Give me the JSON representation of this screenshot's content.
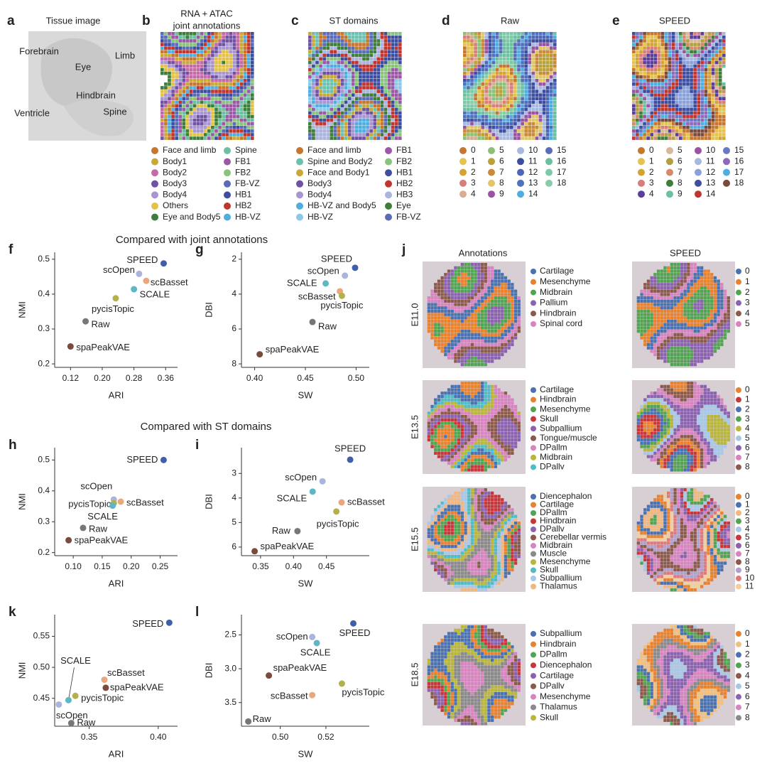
{
  "panels": [
    {
      "letter": "a",
      "title": [
        "Tissue image"
      ],
      "annotations": [
        "Forebrain",
        "Eye",
        "Limb",
        "Hindbrain",
        "Ventricle",
        "Spine"
      ]
    },
    {
      "letter": "b",
      "title": [
        "RNA + ATAC",
        "joint annotations"
      ],
      "legend": [
        {
          "label": "Face and limb",
          "color": "#c6762e"
        },
        {
          "label": "Body1",
          "color": "#c9a936"
        },
        {
          "label": "Body2",
          "color": "#c46aa6"
        },
        {
          "label": "Body3",
          "color": "#6f52a4"
        },
        {
          "label": "Body4",
          "color": "#a896d0"
        },
        {
          "label": "Others",
          "color": "#e3c24a"
        },
        {
          "label": "Eye and Body5",
          "color": "#3f7d3a"
        },
        {
          "label": "Spine",
          "color": "#6cc0a0"
        },
        {
          "label": "FB1",
          "color": "#9a58a6"
        },
        {
          "label": "FB2",
          "color": "#8ac47c"
        },
        {
          "label": "FB-VZ",
          "color": "#5a6cb8"
        },
        {
          "label": "HB1",
          "color": "#3d4ea0"
        },
        {
          "label": "HB2",
          "color": "#c0352f"
        },
        {
          "label": "HB-VZ",
          "color": "#4faee0"
        }
      ]
    },
    {
      "letter": "c",
      "title": [
        "ST domains"
      ],
      "legend": [
        {
          "label": "Face and limb",
          "color": "#c6762e"
        },
        {
          "label": "Spine and Body2",
          "color": "#6cc0b0"
        },
        {
          "label": "Face and Body1",
          "color": "#c9a936"
        },
        {
          "label": "Body3",
          "color": "#6f52a4"
        },
        {
          "label": "Body4",
          "color": "#a896d0"
        },
        {
          "label": "HB-VZ and Body5",
          "color": "#4faee0"
        },
        {
          "label": "HB-VZ",
          "color": "#8cc8e8"
        },
        {
          "label": "FB1",
          "color": "#9a58a6"
        },
        {
          "label": "FB2",
          "color": "#8ac47c"
        },
        {
          "label": "HB1",
          "color": "#3d4ea0"
        },
        {
          "label": "HB2",
          "color": "#c0352f"
        },
        {
          "label": "HB3",
          "color": "#aab4dc"
        },
        {
          "label": "Eye",
          "color": "#3f7d3a"
        },
        {
          "label": "FB-VZ",
          "color": "#5a6cb8"
        }
      ]
    },
    {
      "letter": "d",
      "title": [
        "Raw"
      ],
      "legend": [
        {
          "label": "0",
          "color": "#c6762e"
        },
        {
          "label": "1",
          "color": "#e4c34e"
        },
        {
          "label": "2",
          "color": "#d2a434"
        },
        {
          "label": "3",
          "color": "#d97c7c"
        },
        {
          "label": "4",
          "color": "#d8ac92"
        },
        {
          "label": "5",
          "color": "#8cc07a"
        },
        {
          "label": "6",
          "color": "#b9a23c"
        },
        {
          "label": "7",
          "color": "#c98a3a"
        },
        {
          "label": "8",
          "color": "#e0c668"
        },
        {
          "label": "9",
          "color": "#9a52a2"
        },
        {
          "label": "10",
          "color": "#a7b9e0"
        },
        {
          "label": "11",
          "color": "#3d4ea0"
        },
        {
          "label": "12",
          "color": "#4e65b5"
        },
        {
          "label": "13",
          "color": "#4a72c0"
        },
        {
          "label": "14",
          "color": "#4faee0"
        },
        {
          "label": "15",
          "color": "#5a6cb8"
        },
        {
          "label": "16",
          "color": "#6cc0a0"
        },
        {
          "label": "17",
          "color": "#7ec8a8"
        },
        {
          "label": "18",
          "color": "#8acba8"
        }
      ]
    },
    {
      "letter": "e",
      "title": [
        "SPEED"
      ],
      "legend": [
        {
          "label": "0",
          "color": "#c6762e"
        },
        {
          "label": "1",
          "color": "#e4c34e"
        },
        {
          "label": "2",
          "color": "#d2a434"
        },
        {
          "label": "3",
          "color": "#d97c7c"
        },
        {
          "label": "4",
          "color": "#5a3e9a"
        },
        {
          "label": "5",
          "color": "#d8b89a"
        },
        {
          "label": "6",
          "color": "#b0a040"
        },
        {
          "label": "7",
          "color": "#d48a6a"
        },
        {
          "label": "8",
          "color": "#3f7d3a"
        },
        {
          "label": "9",
          "color": "#6cc0a0"
        },
        {
          "label": "10",
          "color": "#9a52a2"
        },
        {
          "label": "11",
          "color": "#a7b9e0"
        },
        {
          "label": "12",
          "color": "#8aa0d8"
        },
        {
          "label": "13",
          "color": "#3d4ea0"
        },
        {
          "label": "14",
          "color": "#c0352f"
        },
        {
          "label": "15",
          "color": "#6a78c0"
        },
        {
          "label": "16",
          "color": "#8f6ab8"
        },
        {
          "label": "17",
          "color": "#4faee0"
        },
        {
          "label": "18",
          "color": "#7a4a3e"
        }
      ]
    }
  ],
  "section_titles": [
    "Compared with joint annotations",
    "Compared with ST domains"
  ],
  "chart_data": [
    {
      "type": "scatter",
      "panel": "f",
      "xlabel": "ARI",
      "ylabel": "NMI",
      "categories": [
        "SPEED",
        "scOpen",
        "scBasset",
        "SCALE",
        "pycisTopic",
        "Raw",
        "spaPeakVAE"
      ],
      "colors": [
        "#3f5fa8",
        "#aab4dc",
        "#e8a87c",
        "#5fb7c4",
        "#b5b04a",
        "#777777",
        "#7a4a3e"
      ],
      "x": [
        0.355,
        0.293,
        0.311,
        0.28,
        0.234,
        0.158,
        0.12
      ],
      "values": [
        0.488,
        0.458,
        0.438,
        0.414,
        0.388,
        0.322,
        0.25
      ],
      "xlim": [
        0.08,
        0.39
      ],
      "ylim": [
        0.19,
        0.52
      ],
      "xticks": [
        0.12,
        {
          "value": 0.2,
          "label": "0.20"
        },
        0.28,
        0.36
      ],
      "yticks": [
        0.2,
        0.3,
        0.4,
        0.5
      ]
    },
    {
      "type": "scatter",
      "panel": "g",
      "xlabel": "SW",
      "ylabel": "DBI",
      "categories": [
        "SPEED",
        "scOpen",
        "SCALE",
        "scBasset",
        "pycisTopic",
        "Raw",
        "spaPeakVAE"
      ],
      "colors": [
        "#3f5fa8",
        "#aab4dc",
        "#5fb7c4",
        "#e8a87c",
        "#b5b04a",
        "#777777",
        "#7a4a3e"
      ],
      "x": [
        0.499,
        0.489,
        0.47,
        0.484,
        0.486,
        0.457,
        0.405
      ],
      "values": [
        2.49,
        2.94,
        3.39,
        3.84,
        4.1,
        5.6,
        7.45
      ],
      "xlim": [
        0.387,
        0.513
      ],
      "ylim": [
        8.2,
        1.6
      ],
      "xticks": [
        {
          "value": 0.4,
          "label": "0.40"
        },
        0.45,
        {
          "value": 0.5,
          "label": "0.50"
        }
      ],
      "yticks": [
        2,
        4,
        6,
        8
      ]
    },
    {
      "type": "scatter",
      "panel": "h",
      "xlabel": "ARI",
      "ylabel": "NMI",
      "categories": [
        "SPEED",
        "scOpen",
        "scBasset",
        "pycisTopic",
        "SCALE",
        "Raw",
        "spaPeakVAE"
      ],
      "colors": [
        "#3f5fa8",
        "#aab4dc",
        "#e8a87c",
        "#b5b04a",
        "#5fb7c4",
        "#777777",
        "#7a4a3e"
      ],
      "x": [
        0.256,
        0.17,
        0.182,
        0.17,
        0.168,
        0.117,
        0.092
      ],
      "values": [
        0.5,
        0.372,
        0.365,
        0.36,
        0.352,
        0.28,
        0.24
      ],
      "xlim": [
        0.068,
        0.28
      ],
      "ylim": [
        0.19,
        0.54
      ],
      "xticks": [
        {
          "value": 0.1,
          "label": "0.10"
        },
        0.15,
        {
          "value": 0.2,
          "label": "0.20"
        },
        0.25
      ],
      "yticks": [
        0.2,
        0.3,
        0.4,
        0.5
      ]
    },
    {
      "type": "scatter",
      "panel": "i",
      "xlabel": "SW",
      "ylabel": "DBI",
      "categories": [
        "SPEED",
        "scOpen",
        "SCALE",
        "scBasset",
        "pycisTopic",
        "Raw",
        "spaPeakVAE"
      ],
      "colors": [
        "#3f5fa8",
        "#aab4dc",
        "#5fb7c4",
        "#e8a87c",
        "#b5b04a",
        "#777777",
        "#7a4a3e"
      ],
      "x": [
        0.486,
        0.444,
        0.429,
        0.473,
        0.465,
        0.406,
        0.341
      ],
      "values": [
        2.44,
        3.32,
        3.74,
        4.18,
        4.55,
        5.35,
        6.17
      ],
      "xlim": [
        0.321,
        0.515
      ],
      "ylim": [
        6.35,
        1.95
      ],
      "xticks": [
        0.35,
        {
          "value": 0.4,
          "label": "0.40"
        },
        0.45
      ],
      "yticks": [
        3,
        4,
        5,
        6
      ]
    },
    {
      "type": "scatter",
      "panel": "k",
      "xlabel": "ARI",
      "ylabel": "NMI",
      "categories": [
        "SPEED",
        "scBasset",
        "spaPeakVAE",
        "pycisTopic",
        "SCALE",
        "scOpen",
        "Raw"
      ],
      "colors": [
        "#3f5fa8",
        "#e8a87c",
        "#7a4a3e",
        "#b5b04a",
        "#5fb7c4",
        "#aab4dc",
        "#777777"
      ],
      "x": [
        0.408,
        0.361,
        0.362,
        0.34,
        0.335,
        0.328,
        0.337
      ],
      "values": [
        0.572,
        0.48,
        0.467,
        0.454,
        0.447,
        0.44,
        0.41
      ],
      "xlim": [
        0.325,
        0.414
      ],
      "ylim": [
        0.405,
        0.585
      ],
      "xticks": [
        0.35,
        {
          "value": 0.4,
          "label": "0.40"
        }
      ],
      "yticks": [
        0.45,
        {
          "value": 0.5,
          "label": "0.50"
        },
        0.55
      ]
    },
    {
      "type": "scatter",
      "panel": "l",
      "xlabel": "SW",
      "ylabel": "DBI",
      "categories": [
        "SPEED",
        "scOpen",
        "SCALE",
        "spaPeakVAE",
        "pycisTopic",
        "scBasset",
        "Raw"
      ],
      "colors": [
        "#3f5fa8",
        "#aab4dc",
        "#5fb7c4",
        "#7a4a3e",
        "#b5b04a",
        "#e8a87c",
        "#777777"
      ],
      "x": [
        0.532,
        0.514,
        0.516,
        0.495,
        0.527,
        0.514,
        0.486
      ],
      "values": [
        2.33,
        2.53,
        2.62,
        3.1,
        3.22,
        3.39,
        3.78
      ],
      "xlim": [
        0.483,
        0.539
      ],
      "ylim": [
        3.85,
        2.2
      ],
      "xticks": [
        {
          "value": 0.5,
          "label": "0.50"
        },
        0.52
      ],
      "yticks": [
        2.5,
        {
          "value": 3.0,
          "label": "3.0"
        },
        3.5
      ]
    }
  ],
  "panel_j": {
    "letter": "j",
    "columns": [
      "Annotations",
      "SPEED"
    ],
    "rows": [
      {
        "stage": "E11.0",
        "annotations": [
          {
            "label": "Cartilage",
            "color": "#4a72b0"
          },
          {
            "label": "Mesenchyme",
            "color": "#e8822e"
          },
          {
            "label": "Midbrain",
            "color": "#52a452"
          },
          {
            "label": "Pallium",
            "color": "#8a62b0"
          },
          {
            "label": "Hindbrain",
            "color": "#8c5a4a"
          },
          {
            "label": "Spinal cord",
            "color": "#d884c0"
          }
        ],
        "speed": [
          {
            "label": "0",
            "color": "#4a72b0"
          },
          {
            "label": "1",
            "color": "#e8822e"
          },
          {
            "label": "2",
            "color": "#52a452"
          },
          {
            "label": "3",
            "color": "#8a62b0"
          },
          {
            "label": "4",
            "color": "#8c5a4a"
          },
          {
            "label": "5",
            "color": "#d884c0"
          }
        ]
      },
      {
        "stage": "E13.5",
        "annotations": [
          {
            "label": "Cartilage",
            "color": "#4a72b0"
          },
          {
            "label": "Hindbrain",
            "color": "#e8822e"
          },
          {
            "label": "Mesenchyme",
            "color": "#52a452"
          },
          {
            "label": "Skull",
            "color": "#c8363a"
          },
          {
            "label": "Subpallium",
            "color": "#8a62b0"
          },
          {
            "label": "Tongue/muscle",
            "color": "#8c5a4a"
          },
          {
            "label": "DPallm",
            "color": "#d884c0"
          },
          {
            "label": "Midbrain",
            "color": "#b8b63c"
          },
          {
            "label": "DPallv",
            "color": "#4fbcc8"
          }
        ],
        "speed": [
          {
            "label": "0",
            "color": "#e8822e"
          },
          {
            "label": "1",
            "color": "#c8363a"
          },
          {
            "label": "2",
            "color": "#4a72b0"
          },
          {
            "label": "3",
            "color": "#52a452"
          },
          {
            "label": "4",
            "color": "#b8b63c"
          },
          {
            "label": "5",
            "color": "#a8c8e8"
          },
          {
            "label": "6",
            "color": "#8a62b0"
          },
          {
            "label": "7",
            "color": "#d884c0"
          },
          {
            "label": "8",
            "color": "#8c5a4a"
          }
        ]
      },
      {
        "stage": "E15.5",
        "annotations": [
          {
            "label": "Diencephalon",
            "color": "#4a72b0"
          },
          {
            "label": "Cartilage",
            "color": "#e8822e"
          },
          {
            "label": "DPallm",
            "color": "#52a452"
          },
          {
            "label": "Hindbrain",
            "color": "#c8363a"
          },
          {
            "label": "DPallv",
            "color": "#8a62b0"
          },
          {
            "label": "Cerebellar vermis",
            "color": "#8c5a4a"
          },
          {
            "label": "Midbrain",
            "color": "#d884c0"
          },
          {
            "label": "Muscle",
            "color": "#8a8a8a"
          },
          {
            "label": "Mesenchyme",
            "color": "#b8b63c"
          },
          {
            "label": "Skull",
            "color": "#4fbcc8"
          },
          {
            "label": "Subpallium",
            "color": "#a8c8e8"
          },
          {
            "label": "Thalamus",
            "color": "#f0b880"
          }
        ],
        "speed": [
          {
            "label": "0",
            "color": "#e8822e"
          },
          {
            "label": "1",
            "color": "#4a72b0"
          },
          {
            "label": "2",
            "color": "#f0b880"
          },
          {
            "label": "3",
            "color": "#52a452"
          },
          {
            "label": "4",
            "color": "#a8c8e8"
          },
          {
            "label": "5",
            "color": "#c8363a"
          },
          {
            "label": "6",
            "color": "#8a62b0"
          },
          {
            "label": "7",
            "color": "#d884c0"
          },
          {
            "label": "8",
            "color": "#8c5a4a"
          },
          {
            "label": "9",
            "color": "#b0a0d0"
          },
          {
            "label": "10",
            "color": "#e07a7a"
          },
          {
            "label": "11",
            "color": "#f0d0a0"
          }
        ]
      },
      {
        "stage": "E18.5",
        "annotations": [
          {
            "label": "Subpallium",
            "color": "#4a72b0"
          },
          {
            "label": "Hindbrain",
            "color": "#e8822e"
          },
          {
            "label": "DPallm",
            "color": "#52a452"
          },
          {
            "label": "Diencephalon",
            "color": "#c8363a"
          },
          {
            "label": "Cartilage",
            "color": "#8a62b0"
          },
          {
            "label": "DPallv",
            "color": "#8c5a4a"
          },
          {
            "label": "Mesenchyme",
            "color": "#d884c0"
          },
          {
            "label": "Thalamus",
            "color": "#8a8a8a"
          },
          {
            "label": "Skull",
            "color": "#b8b63c"
          }
        ],
        "speed": [
          {
            "label": "0",
            "color": "#e8822e"
          },
          {
            "label": "1",
            "color": "#f0c080"
          },
          {
            "label": "2",
            "color": "#4a72b0"
          },
          {
            "label": "3",
            "color": "#52a452"
          },
          {
            "label": "4",
            "color": "#8c5a4a"
          },
          {
            "label": "5",
            "color": "#a8c8e8"
          },
          {
            "label": "6",
            "color": "#8a62b0"
          },
          {
            "label": "7",
            "color": "#d884c0"
          },
          {
            "label": "8",
            "color": "#8a8a8a"
          }
        ]
      }
    ]
  }
}
